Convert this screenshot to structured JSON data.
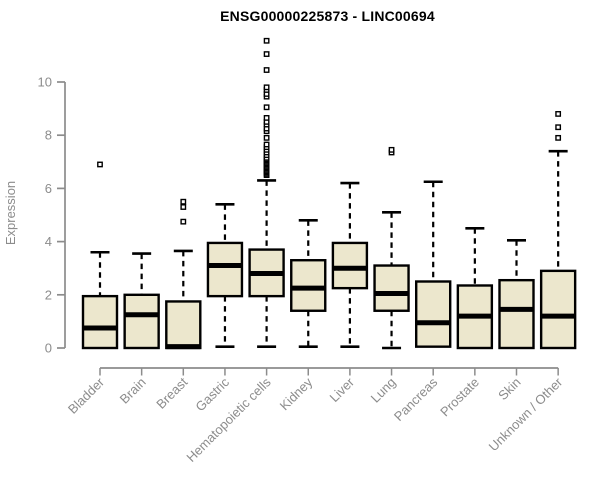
{
  "title": "ENSG00000225873 - LINC00694",
  "chart_data": {
    "type": "boxplot",
    "title": "ENSG00000225873 - LINC00694",
    "xlabel": "",
    "ylabel": "Expression",
    "y_ticks": [
      0,
      2,
      4,
      6,
      8,
      10
    ],
    "ylim": [
      0,
      11.6
    ],
    "grid": false,
    "legend": "none",
    "background": "#ffffff",
    "box_fill": "#ece7cd",
    "box_stroke": "#000000",
    "median_color": "#000000",
    "axis_color": "#8c8c8c",
    "categories": [
      "Bladder",
      "Brain",
      "Breast",
      "Gastric",
      "Hematopoietic cells",
      "Kidney",
      "Liver",
      "Lung",
      "Pancreas",
      "Prostate",
      "Skin",
      "Unknown / Other"
    ],
    "series": [
      {
        "label": "Bladder",
        "whisker_low": 0,
        "q1": 0,
        "median": 0.75,
        "q3": 1.95,
        "whisker_high": 3.6,
        "outliers": [
          6.9
        ]
      },
      {
        "label": "Brain",
        "whisker_low": 0,
        "q1": 0,
        "median": 1.25,
        "q3": 2.0,
        "whisker_high": 3.55,
        "outliers": []
      },
      {
        "label": "Breast",
        "whisker_low": 0,
        "q1": 0,
        "median": 0.05,
        "q3": 1.75,
        "whisker_high": 3.65,
        "outliers": [
          4.75,
          5.3,
          5.5
        ]
      },
      {
        "label": "Gastric",
        "whisker_low": 0.05,
        "q1": 1.95,
        "median": 3.1,
        "q3": 3.95,
        "whisker_high": 5.4,
        "outliers": []
      },
      {
        "label": "Hematopoietic cells",
        "whisker_low": 0.05,
        "q1": 1.95,
        "median": 2.8,
        "q3": 3.7,
        "whisker_high": 6.3,
        "outliers": [
          6.5,
          6.55,
          6.6,
          6.65,
          6.7,
          6.75,
          6.8,
          6.85,
          6.9,
          6.95,
          7.0,
          7.05,
          7.1,
          7.15,
          7.25,
          7.35,
          7.45,
          7.55,
          7.65,
          7.9,
          8.15,
          8.25,
          8.4,
          8.5,
          8.65,
          9.05,
          9.45,
          9.55,
          9.7,
          9.8,
          10.45,
          11.05,
          11.55
        ]
      },
      {
        "label": "Kidney",
        "whisker_low": 0.05,
        "q1": 1.4,
        "median": 2.25,
        "q3": 3.3,
        "whisker_high": 4.8,
        "outliers": []
      },
      {
        "label": "Liver",
        "whisker_low": 0.05,
        "q1": 2.25,
        "median": 3.0,
        "q3": 3.95,
        "whisker_high": 6.2,
        "outliers": []
      },
      {
        "label": "Lung",
        "whisker_low": 0,
        "q1": 1.4,
        "median": 2.05,
        "q3": 3.1,
        "whisker_high": 5.1,
        "outliers": [
          7.35,
          7.45
        ]
      },
      {
        "label": "Pancreas",
        "whisker_low": 0,
        "q1": 0.05,
        "median": 0.95,
        "q3": 2.5,
        "whisker_high": 6.25,
        "outliers": []
      },
      {
        "label": "Prostate",
        "whisker_low": 0,
        "q1": 0,
        "median": 1.2,
        "q3": 2.35,
        "whisker_high": 4.5,
        "outliers": []
      },
      {
        "label": "Skin",
        "whisker_low": 0,
        "q1": 0,
        "median": 1.45,
        "q3": 2.55,
        "whisker_high": 4.05,
        "outliers": []
      },
      {
        "label": "Unknown / Other",
        "whisker_low": 0,
        "q1": 0,
        "median": 1.2,
        "q3": 2.9,
        "whisker_high": 7.4,
        "outliers": [
          7.9,
          8.3,
          8.8
        ]
      }
    ]
  }
}
